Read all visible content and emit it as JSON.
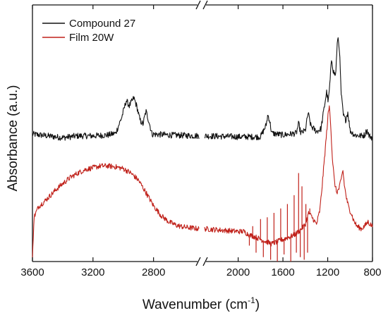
{
  "chart_data": {
    "type": "line",
    "title": "",
    "xlabel": "Wavenumber (cm",
    "xlabel_sup": "-1",
    "xlabel_suffix": ")",
    "ylabel": "Absorbance (a.u.)",
    "x_reversed": true,
    "y_ticks_shown": false,
    "grid": false,
    "legend": "top-left",
    "axis_break": {
      "between": [
        2500,
        2300
      ],
      "marker": "//"
    },
    "segments": [
      {
        "xlim": [
          3600,
          2500
        ],
        "ticks": [
          3600,
          3200,
          2800
        ],
        "tick_labels": [
          "3600",
          "3200",
          "2800"
        ]
      },
      {
        "xlim": [
          2300,
          800
        ],
        "ticks": [
          2000,
          1600,
          1200,
          800
        ],
        "tick_labels": [
          "2000",
          "1600",
          "1200",
          "800"
        ]
      }
    ],
    "ylim": [
      -0.3,
      2.6
    ],
    "series": [
      {
        "name": "Compound 27",
        "color": "#111111",
        "noise": 0.035,
        "values": [
          [
            3600,
            1.14
          ],
          [
            3500,
            1.12
          ],
          [
            3400,
            1.1
          ],
          [
            3300,
            1.12
          ],
          [
            3200,
            1.12
          ],
          [
            3100,
            1.13
          ],
          [
            3050,
            1.15
          ],
          [
            3010,
            1.33
          ],
          [
            2980,
            1.52
          ],
          [
            2960,
            1.46
          ],
          [
            2930,
            1.55
          ],
          [
            2910,
            1.45
          ],
          [
            2890,
            1.3
          ],
          [
            2870,
            1.25
          ],
          [
            2850,
            1.4
          ],
          [
            2830,
            1.28
          ],
          [
            2810,
            1.14
          ],
          [
            2700,
            1.13
          ],
          [
            2500,
            1.12
          ],
          [
            2300,
            1.12
          ],
          [
            2000,
            1.11
          ],
          [
            1800,
            1.11
          ],
          [
            1750,
            1.24
          ],
          [
            1735,
            1.36
          ],
          [
            1720,
            1.3
          ],
          [
            1700,
            1.15
          ],
          [
            1600,
            1.13
          ],
          [
            1480,
            1.15
          ],
          [
            1460,
            1.26
          ],
          [
            1440,
            1.15
          ],
          [
            1400,
            1.18
          ],
          [
            1375,
            1.38
          ],
          [
            1350,
            1.23
          ],
          [
            1300,
            1.17
          ],
          [
            1260,
            1.2
          ],
          [
            1230,
            1.45
          ],
          [
            1210,
            1.62
          ],
          [
            1195,
            1.5
          ],
          [
            1180,
            1.72
          ],
          [
            1165,
            2.0
          ],
          [
            1150,
            1.85
          ],
          [
            1130,
            1.8
          ],
          [
            1110,
            2.25
          ],
          [
            1095,
            2.1
          ],
          [
            1080,
            1.6
          ],
          [
            1060,
            1.35
          ],
          [
            1040,
            1.3
          ],
          [
            1020,
            1.39
          ],
          [
            1000,
            1.18
          ],
          [
            960,
            1.13
          ],
          [
            900,
            1.12
          ],
          [
            870,
            1.13
          ],
          [
            850,
            1.19
          ],
          [
            830,
            1.12
          ],
          [
            800,
            1.1
          ]
        ]
      },
      {
        "name": "Film 20W",
        "color": "#c0211a",
        "noise": 0.03,
        "values": [
          [
            3600,
            -0.28
          ],
          [
            3590,
            0.2
          ],
          [
            3560,
            0.32
          ],
          [
            3520,
            0.38
          ],
          [
            3480,
            0.45
          ],
          [
            3440,
            0.52
          ],
          [
            3400,
            0.58
          ],
          [
            3350,
            0.65
          ],
          [
            3300,
            0.7
          ],
          [
            3250,
            0.74
          ],
          [
            3200,
            0.76
          ],
          [
            3150,
            0.78
          ],
          [
            3100,
            0.78
          ],
          [
            3050,
            0.77
          ],
          [
            3000,
            0.75
          ],
          [
            2950,
            0.7
          ],
          [
            2900,
            0.62
          ],
          [
            2850,
            0.48
          ],
          [
            2800,
            0.33
          ],
          [
            2750,
            0.22
          ],
          [
            2700,
            0.15
          ],
          [
            2650,
            0.11
          ],
          [
            2600,
            0.09
          ],
          [
            2550,
            0.08
          ],
          [
            2500,
            0.07
          ],
          [
            2300,
            0.07
          ],
          [
            2200,
            0.06
          ],
          [
            2100,
            0.05
          ],
          [
            2000,
            0.04
          ],
          [
            1950,
            0.04
          ],
          [
            1900,
            0.0
          ],
          [
            1850,
            -0.02
          ],
          [
            1800,
            -0.05
          ],
          [
            1700,
            -0.1
          ],
          [
            1600,
            -0.05
          ],
          [
            1500,
            0.0
          ],
          [
            1450,
            0.05
          ],
          [
            1400,
            0.12
          ],
          [
            1370,
            0.25
          ],
          [
            1340,
            0.2
          ],
          [
            1300,
            0.12
          ],
          [
            1270,
            0.28
          ],
          [
            1250,
            0.55
          ],
          [
            1230,
            0.85
          ],
          [
            1210,
            1.15
          ],
          [
            1195,
            1.38
          ],
          [
            1185,
            1.45
          ],
          [
            1175,
            1.3
          ],
          [
            1160,
            0.9
          ],
          [
            1140,
            0.6
          ],
          [
            1120,
            0.48
          ],
          [
            1100,
            0.52
          ],
          [
            1080,
            0.62
          ],
          [
            1065,
            0.74
          ],
          [
            1050,
            0.55
          ],
          [
            1030,
            0.4
          ],
          [
            1010,
            0.3
          ],
          [
            990,
            0.25
          ],
          [
            970,
            0.17
          ],
          [
            940,
            0.1
          ],
          [
            900,
            0.07
          ],
          [
            870,
            0.1
          ],
          [
            840,
            0.15
          ],
          [
            820,
            0.12
          ],
          [
            800,
            0.1
          ]
        ],
        "spikes": [
          [
            1900,
            -0.12
          ],
          [
            1870,
            0.1
          ],
          [
            1840,
            -0.2
          ],
          [
            1800,
            0.18
          ],
          [
            1775,
            -0.25
          ],
          [
            1740,
            0.2
          ],
          [
            1710,
            -0.28
          ],
          [
            1680,
            0.25
          ],
          [
            1650,
            -0.3
          ],
          [
            1620,
            0.3
          ],
          [
            1590,
            -0.22
          ],
          [
            1560,
            0.35
          ],
          [
            1530,
            -0.3
          ],
          [
            1500,
            0.45
          ],
          [
            1480,
            -0.2
          ],
          [
            1460,
            0.7
          ],
          [
            1445,
            -0.25
          ],
          [
            1430,
            0.55
          ],
          [
            1410,
            -0.28
          ],
          [
            1395,
            0.35
          ],
          [
            1380,
            -0.2
          ],
          [
            1360,
            0.3
          ]
        ]
      }
    ]
  }
}
